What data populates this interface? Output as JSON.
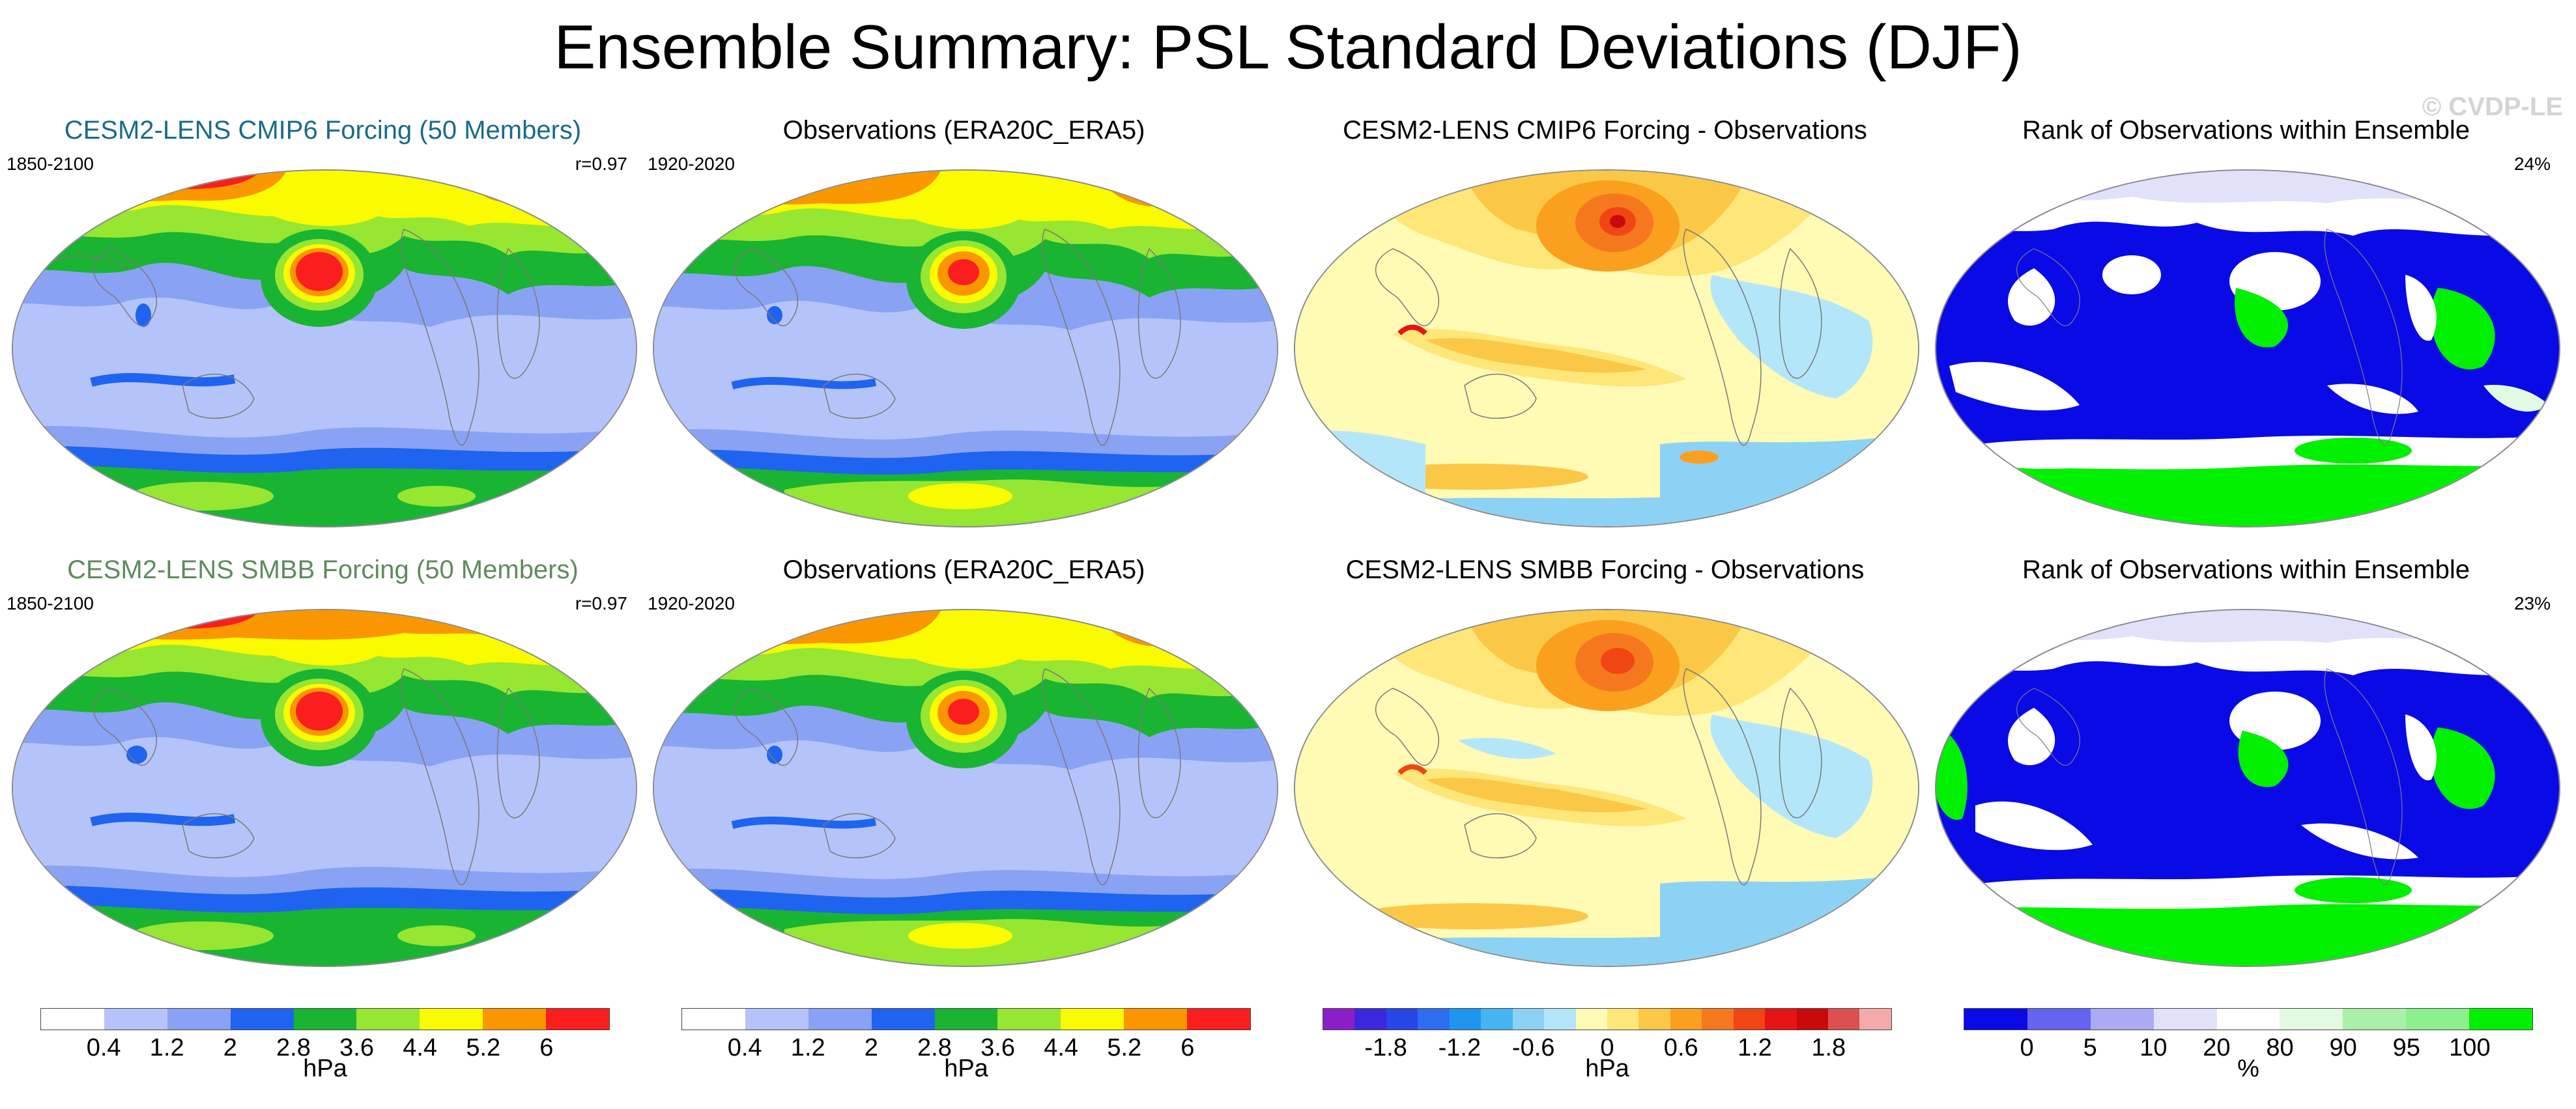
{
  "title": "Ensemble Summary: PSL Standard Deviations (DJF)",
  "watermark": "© CVDP-LE",
  "panels": [
    {
      "title": "CESM2-LENS CMIP6 Forcing (50 Members)",
      "title_color": "#1a6b8a",
      "left": "1850-2100",
      "right": "r=0.97",
      "kind": "std"
    },
    {
      "title": "Observations (ERA20C_ERA5)",
      "title_color": "#000000",
      "left": "1920-2020",
      "right": "",
      "kind": "std"
    },
    {
      "title": "CESM2-LENS CMIP6 Forcing - Observations",
      "title_color": "#000000",
      "left": "",
      "right": "",
      "kind": "diff"
    },
    {
      "title": "Rank of Observations within Ensemble",
      "title_color": "#000000",
      "left": "",
      "right": "24%",
      "kind": "rank"
    },
    {
      "title": "CESM2-LENS SMBB Forcing (50 Members)",
      "title_color": "#5f8a5f",
      "left": "1850-2100",
      "right": "r=0.97",
      "kind": "std"
    },
    {
      "title": "Observations (ERA20C_ERA5)",
      "title_color": "#000000",
      "left": "1920-2020",
      "right": "",
      "kind": "std"
    },
    {
      "title": "CESM2-LENS SMBB Forcing - Observations",
      "title_color": "#000000",
      "left": "",
      "right": "",
      "kind": "diff"
    },
    {
      "title": "Rank of Observations within Ensemble",
      "title_color": "#000000",
      "left": "",
      "right": "23%",
      "kind": "rank"
    }
  ],
  "colorbars": {
    "std": {
      "colors": [
        "#ffffff",
        "#b4c4fa",
        "#8aa2f4",
        "#1e64f0",
        "#19b432",
        "#96e632",
        "#fafa00",
        "#fa9600",
        "#fa1e1e"
      ],
      "ticks": [
        "0.4",
        "1.2",
        "2",
        "2.8",
        "3.6",
        "4.4",
        "5.2",
        "6"
      ],
      "unit": "hPa"
    },
    "diff": {
      "colors": [
        "#8c1ec8",
        "#3c28dc",
        "#2846e6",
        "#2d6ef0",
        "#1e96f0",
        "#46b4f0",
        "#8cd2f5",
        "#b4e6fa",
        "#fffab4",
        "#ffe678",
        "#fac846",
        "#faa01e",
        "#f5781e",
        "#f04614",
        "#e61414",
        "#c80a0a",
        "#dc5050",
        "#f5aaaa"
      ],
      "ticks": [
        "-1.8",
        "-1.2",
        "-0.6",
        "0",
        "0.6",
        "1.2",
        "1.8"
      ],
      "unit": "hPa"
    },
    "rank": {
      "colors": [
        "#0a0ae6",
        "#6464f0",
        "#aaaaf5",
        "#e1e1fa",
        "#ffffff",
        "#e1fae1",
        "#aaf0aa",
        "#8cf08c",
        "#00f000"
      ],
      "ticks": [
        "0",
        "5",
        "10",
        "20",
        "80",
        "90",
        "95",
        "100"
      ],
      "unit": "%"
    }
  }
}
